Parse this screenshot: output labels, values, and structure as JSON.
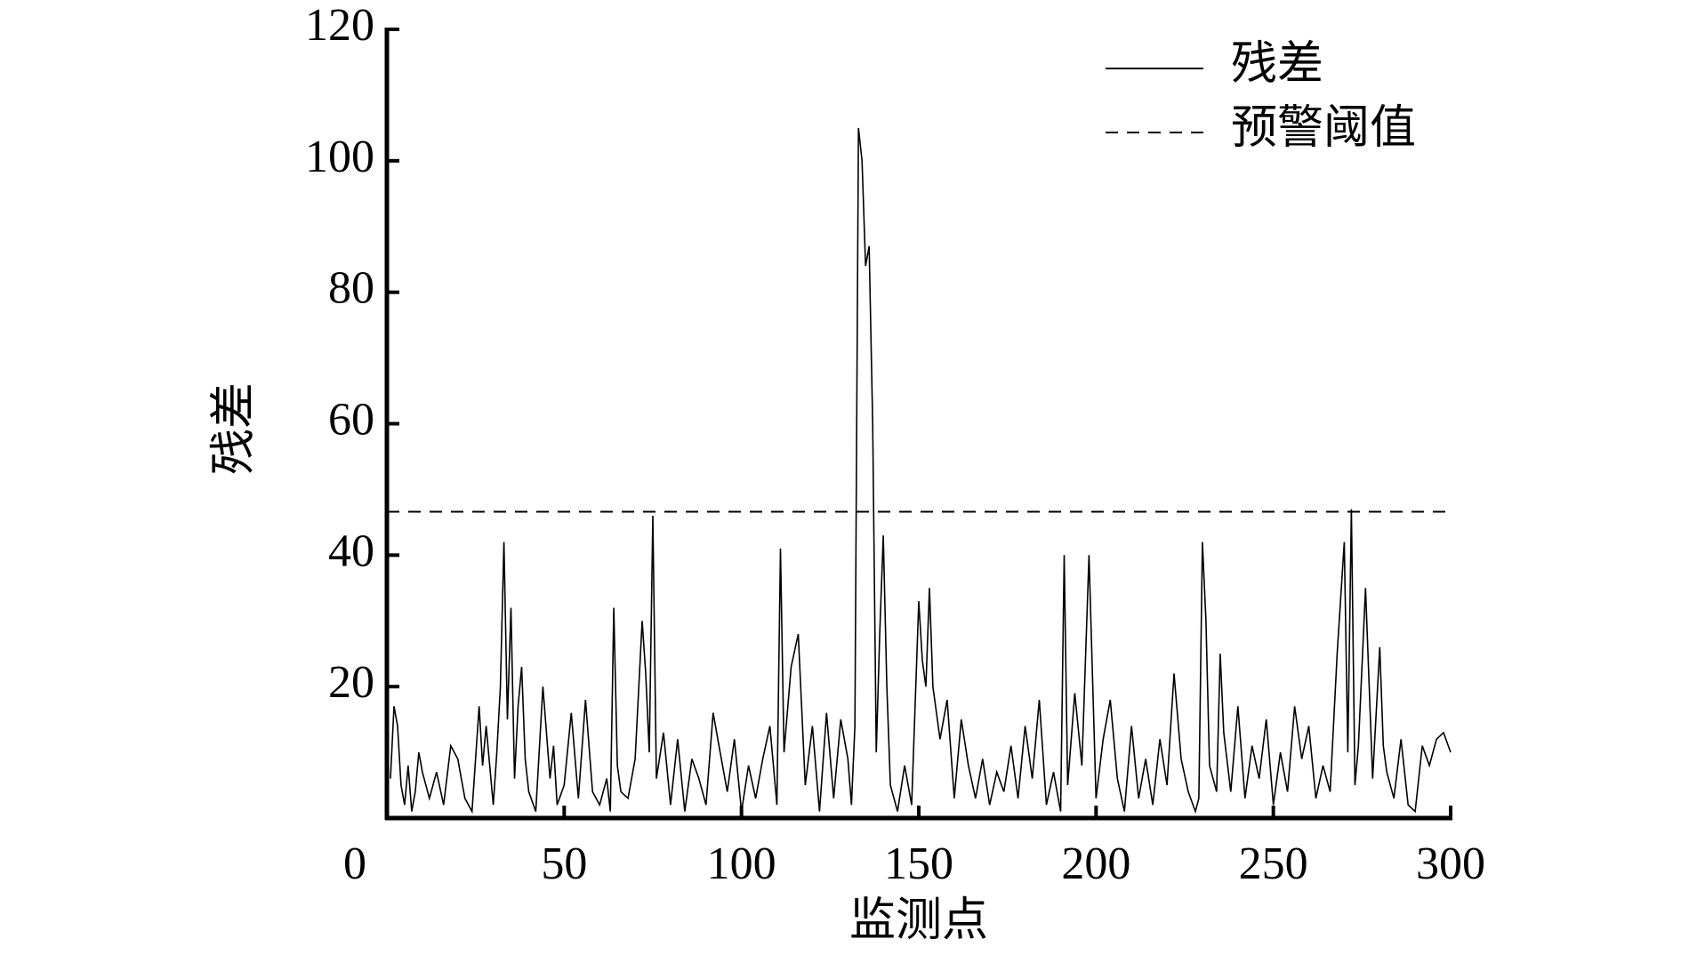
{
  "chart_data": {
    "type": "line",
    "x_label": "监测点",
    "y_label": "残差",
    "x": [
      1,
      2,
      3,
      4,
      5,
      6,
      7,
      8,
      9,
      10,
      12,
      14,
      16,
      18,
      20,
      22,
      24,
      26,
      27,
      28,
      30,
      31,
      32,
      33,
      34,
      35,
      36,
      37,
      38,
      39,
      40,
      42,
      44,
      46,
      47,
      48,
      50,
      52,
      54,
      56,
      58,
      60,
      62,
      63,
      64,
      65,
      66,
      68,
      70,
      72,
      73,
      74,
      75,
      76,
      78,
      80,
      82,
      84,
      86,
      88,
      90,
      92,
      94,
      96,
      98,
      100,
      102,
      104,
      106,
      108,
      110,
      111,
      112,
      114,
      116,
      118,
      120,
      122,
      124,
      126,
      128,
      130,
      131,
      132,
      133,
      134,
      135,
      136,
      137,
      138,
      139,
      140,
      141,
      142,
      144,
      146,
      148,
      150,
      151,
      152,
      153,
      154,
      156,
      158,
      160,
      162,
      164,
      166,
      168,
      170,
      172,
      174,
      176,
      178,
      180,
      182,
      184,
      186,
      188,
      190,
      191,
      192,
      194,
      196,
      198,
      200,
      202,
      204,
      206,
      208,
      210,
      212,
      214,
      216,
      218,
      220,
      222,
      224,
      226,
      228,
      229,
      230,
      231,
      232,
      234,
      235,
      236,
      238,
      240,
      242,
      244,
      246,
      248,
      250,
      252,
      254,
      256,
      258,
      260,
      262,
      264,
      266,
      268,
      270,
      271,
      272,
      273,
      274,
      276,
      278,
      280,
      281,
      282,
      284,
      286,
      288,
      290,
      292,
      294,
      296,
      298,
      300
    ],
    "series": [
      {
        "name": "残差",
        "color": "#000000",
        "style": "solid",
        "values": [
          6,
          17,
          14,
          5,
          2,
          8,
          1,
          4,
          10,
          7,
          3,
          7,
          2,
          11,
          9,
          3,
          1,
          17,
          8,
          14,
          2,
          10,
          20,
          42,
          15,
          32,
          6,
          17,
          23,
          9,
          4,
          1,
          20,
          6,
          11,
          2,
          5,
          16,
          3,
          18,
          4,
          2,
          6,
          1,
          32,
          8,
          4,
          3,
          9,
          30,
          22,
          10,
          46,
          6,
          13,
          2,
          12,
          1,
          9,
          6,
          2,
          16,
          10,
          4,
          12,
          1,
          8,
          3,
          9,
          14,
          2,
          41,
          10,
          23,
          28,
          5,
          14,
          1,
          16,
          3,
          15,
          9,
          2,
          14,
          105,
          100,
          84,
          87,
          60,
          10,
          28,
          43,
          20,
          5,
          1,
          8,
          2,
          33,
          24,
          20,
          35,
          20,
          12,
          18,
          3,
          15,
          8,
          3,
          9,
          2,
          7,
          4,
          11,
          3,
          14,
          6,
          18,
          2,
          7,
          1,
          40,
          5,
          19,
          8,
          40,
          3,
          12,
          18,
          6,
          1,
          14,
          3,
          9,
          2,
          12,
          5,
          22,
          9,
          4,
          1,
          3,
          42,
          30,
          8,
          4,
          25,
          13,
          4,
          17,
          3,
          11,
          6,
          15,
          2,
          10,
          4,
          17,
          9,
          14,
          3,
          8,
          4,
          25,
          42,
          10,
          47,
          5,
          11,
          35,
          6,
          26,
          11,
          7,
          3,
          12,
          2,
          1,
          11,
          8,
          12,
          13,
          10
        ]
      },
      {
        "name": "预警阈值",
        "color": "#000000",
        "style": "dashed",
        "value": 46.6
      }
    ],
    "xlim": [
      0,
      300
    ],
    "xticks": [
      0,
      50,
      100,
      150,
      200,
      250,
      300
    ],
    "ylim": [
      0,
      120
    ],
    "yticks": [
      20,
      40,
      60,
      80,
      100,
      120
    ],
    "grid": false,
    "legend": "upper right"
  }
}
